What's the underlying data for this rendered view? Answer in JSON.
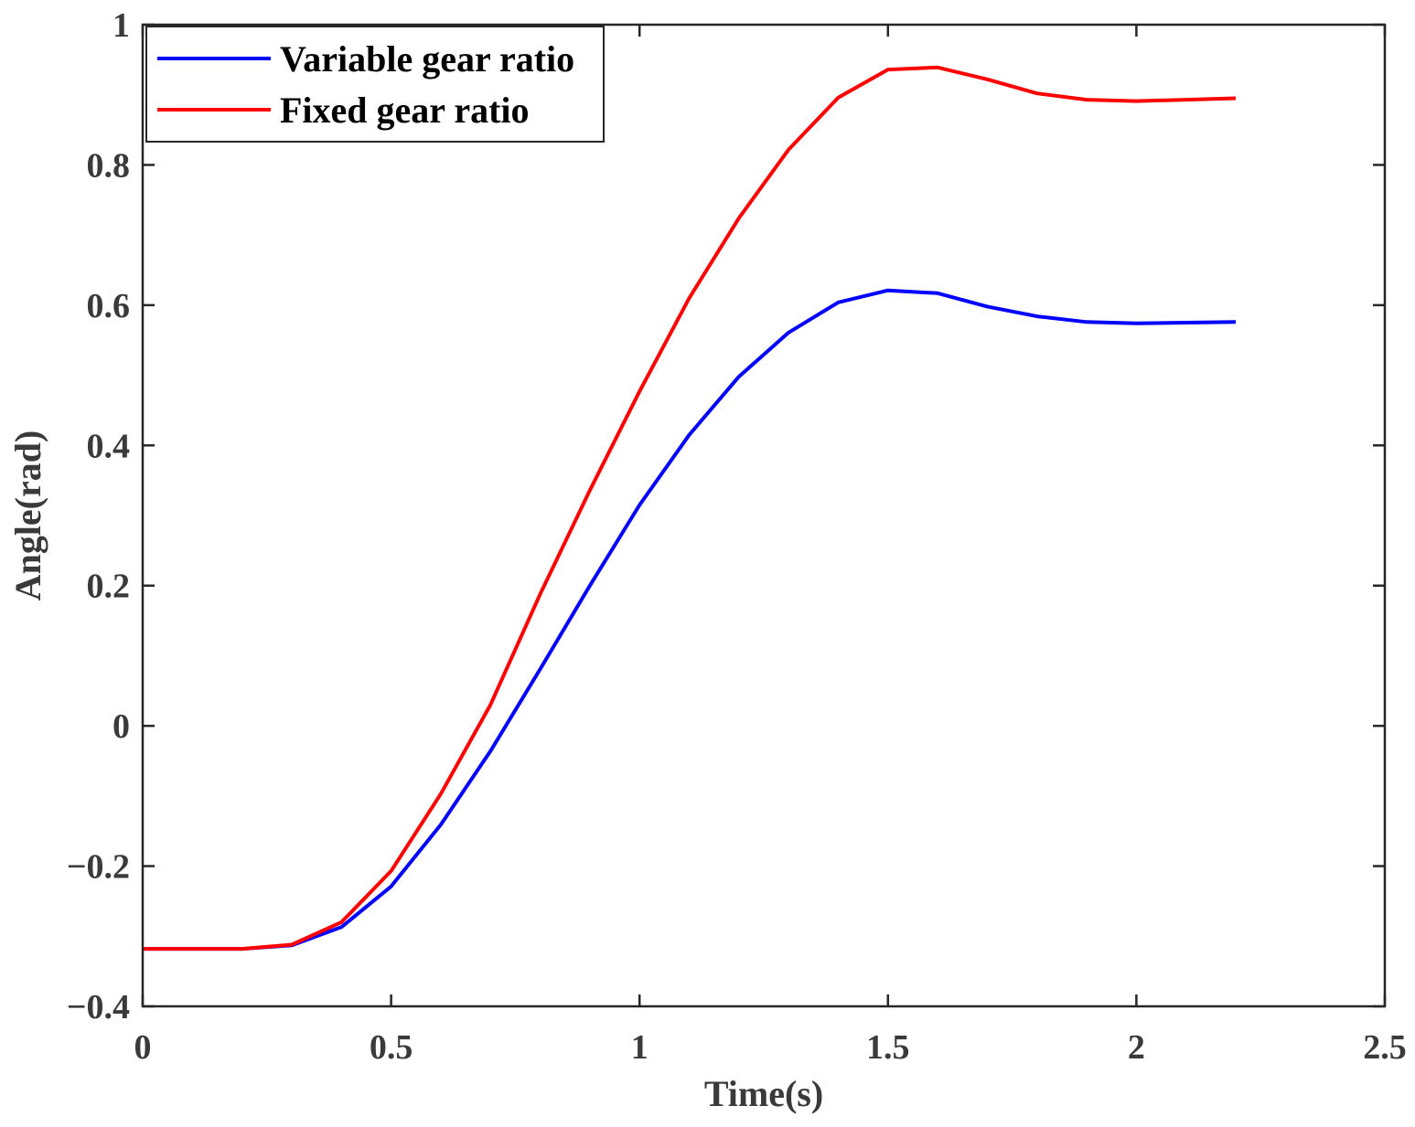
{
  "chart_data": {
    "type": "line",
    "title": "",
    "xlabel": "Time(s)",
    "ylabel": "Angle(rad)",
    "xlim": [
      0,
      2.5
    ],
    "ylim": [
      -0.4,
      1
    ],
    "xticks": [
      0,
      0.5,
      1,
      1.5,
      2,
      2.5
    ],
    "xtick_labels": [
      "0",
      "0.5",
      "1",
      "1.5",
      "2",
      "2.5"
    ],
    "yticks": [
      -0.4,
      -0.2,
      0,
      0.2,
      0.4,
      0.6,
      0.8,
      1
    ],
    "ytick_labels": [
      "−0.4",
      "−0.2",
      "0",
      "0.2",
      "0.4",
      "0.6",
      "0.8",
      "1"
    ],
    "grid": false,
    "legend_position": "top-left",
    "x": [
      0,
      0.1,
      0.2,
      0.3,
      0.4,
      0.5,
      0.6,
      0.7,
      0.8,
      0.9,
      1.0,
      1.1,
      1.2,
      1.3,
      1.4,
      1.5,
      1.6,
      1.7,
      1.8,
      1.9,
      2.0,
      2.1,
      2.2
    ],
    "series": [
      {
        "name": "Variable gear ratio",
        "color": "#0000ff",
        "values": [
          -0.318,
          -0.318,
          -0.318,
          -0.313,
          -0.287,
          -0.229,
          -0.141,
          -0.036,
          0.081,
          0.2,
          0.315,
          0.415,
          0.498,
          0.561,
          0.604,
          0.621,
          0.617,
          0.598,
          0.584,
          0.576,
          0.574,
          0.575,
          0.576
        ]
      },
      {
        "name": "Fixed gear ratio",
        "color": "#ff0000",
        "values": [
          -0.318,
          -0.318,
          -0.318,
          -0.312,
          -0.28,
          -0.207,
          -0.097,
          0.03,
          0.188,
          0.336,
          0.477,
          0.61,
          0.724,
          0.822,
          0.896,
          0.936,
          0.939,
          0.922,
          0.902,
          0.893,
          0.891,
          0.893,
          0.895
        ]
      }
    ]
  }
}
